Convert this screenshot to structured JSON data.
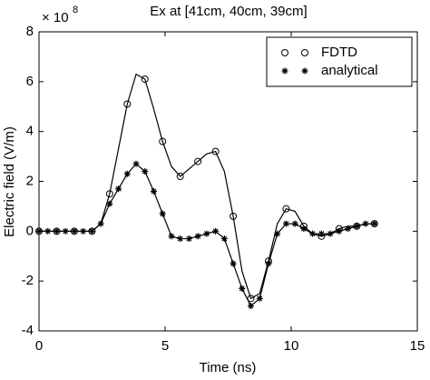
{
  "chart_data": {
    "type": "line",
    "title": "Ex at [41cm, 40cm, 39cm]",
    "xlabel": "Time (ns)",
    "ylabel": "Electric field (V/m)",
    "y_scale_base": "× 10",
    "y_scale_exponent": "8",
    "x": [
      0,
      0.35,
      0.7,
      1.05,
      1.4,
      1.75,
      2.1,
      2.45,
      2.8,
      3.15,
      3.5,
      3.85,
      4.2,
      4.55,
      4.9,
      5.25,
      5.6,
      5.95,
      6.3,
      6.65,
      7.0,
      7.35,
      7.7,
      8.05,
      8.4,
      8.75,
      9.1,
      9.45,
      9.8,
      10.15,
      10.5,
      10.85,
      11.2,
      11.55,
      11.9,
      12.25,
      12.6,
      12.95,
      13.3
    ],
    "series": [
      {
        "name": "FDTD",
        "color": "#000000",
        "marker": "o",
        "marker_every": 2,
        "values": [
          0,
          0,
          0,
          0,
          0,
          0,
          0,
          0.3,
          1.5,
          3.3,
          5.1,
          6.3,
          6.1,
          4.9,
          3.6,
          2.6,
          2.2,
          2.5,
          2.8,
          3.1,
          3.2,
          2.4,
          0.6,
          -1.6,
          -2.7,
          -2.5,
          -1.2,
          0.3,
          0.9,
          0.8,
          0.2,
          -0.1,
          -0.2,
          -0.1,
          0.1,
          0.2,
          0.2,
          0.3,
          0.3
        ]
      },
      {
        "name": "analytical",
        "color": "#000000",
        "marker": "*",
        "marker_every": 1,
        "values": [
          0,
          0,
          0,
          0,
          0,
          0,
          0,
          0.3,
          1.1,
          1.7,
          2.3,
          2.7,
          2.4,
          1.6,
          0.7,
          -0.2,
          -0.3,
          -0.3,
          -0.2,
          -0.1,
          0.0,
          -0.3,
          -1.3,
          -2.3,
          -3.0,
          -2.7,
          -1.3,
          -0.1,
          0.3,
          0.3,
          0.1,
          -0.1,
          -0.1,
          -0.1,
          0.0,
          0.1,
          0.2,
          0.3,
          0.3
        ]
      }
    ],
    "xlim": [
      0,
      15
    ],
    "xticks": [
      0,
      5,
      10,
      15
    ],
    "ylim": [
      -4,
      8
    ],
    "yticks": [
      -4,
      -2,
      0,
      2,
      4,
      6,
      8
    ],
    "grid": false,
    "legend": "northeast"
  }
}
